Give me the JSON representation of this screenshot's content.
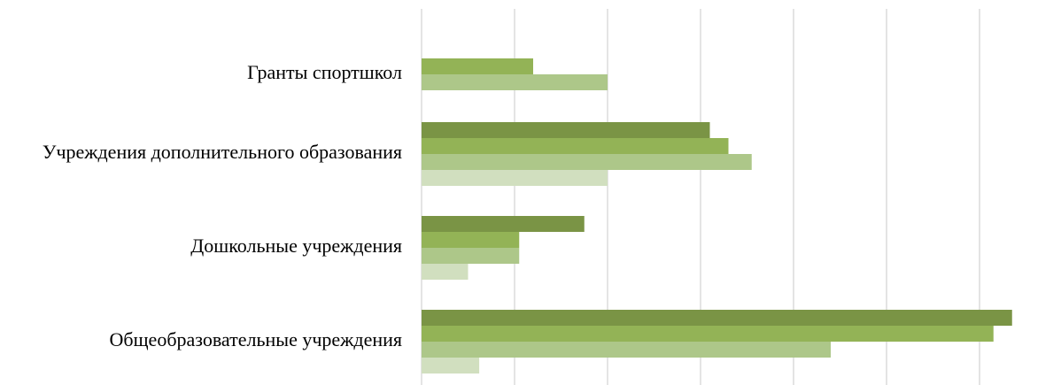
{
  "chart_data": {
    "type": "bar",
    "orientation": "horizontal",
    "categories": [
      "Гранты спортшкол",
      "Учреждения дополнительного образования",
      "Дошкольные учреждения",
      "Общеобразовательные учреждения"
    ],
    "series": [
      {
        "color": "#7a9445",
        "values": [
          0,
          31,
          17.5,
          63.5
        ]
      },
      {
        "color": "#93b356",
        "values": [
          12,
          33,
          10.5,
          61.5
        ]
      },
      {
        "color": "#adc789",
        "values": [
          20,
          35.5,
          10.5,
          44
        ]
      },
      {
        "color": "#d1dfbf",
        "values": [
          0,
          20,
          5,
          6.2
        ]
      }
    ],
    "xlim": [
      0,
      65
    ],
    "grid_step": 10,
    "x_tick_labels_visible": false,
    "grid": true,
    "legend": "none"
  }
}
